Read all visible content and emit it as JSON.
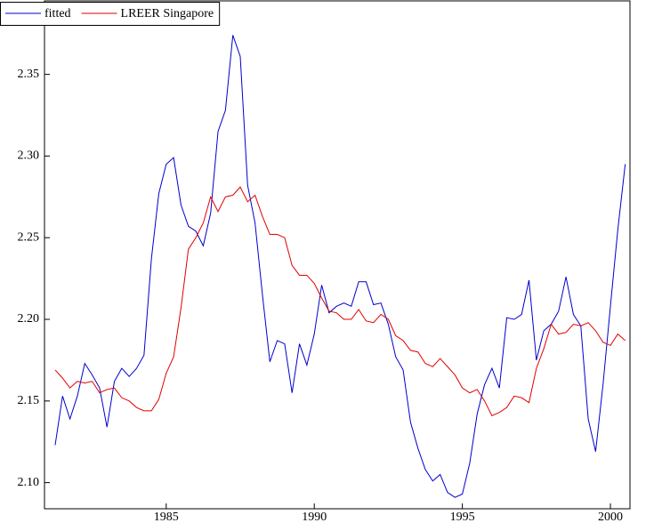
{
  "chart_data": {
    "type": "line",
    "x": [
      1981.25,
      1981.5,
      1981.75,
      1982,
      1982.25,
      1982.5,
      1982.75,
      1983,
      1983.25,
      1983.5,
      1983.75,
      1984,
      1984.25,
      1984.5,
      1984.75,
      1985,
      1985.25,
      1985.5,
      1985.75,
      1986,
      1986.25,
      1986.5,
      1986.75,
      1987,
      1987.25,
      1987.5,
      1987.75,
      1988,
      1988.25,
      1988.5,
      1988.75,
      1989,
      1989.25,
      1989.5,
      1989.75,
      1990,
      1990.25,
      1990.5,
      1990.75,
      1991,
      1991.25,
      1991.5,
      1991.75,
      1992,
      1992.25,
      1992.5,
      1992.75,
      1993,
      1993.25,
      1993.5,
      1993.75,
      1994,
      1994.25,
      1994.5,
      1994.75,
      1995,
      1995.25,
      1995.5,
      1995.75,
      1996,
      1996.25,
      1996.5,
      1996.75,
      1997,
      1997.25,
      1997.5,
      1997.75,
      1998,
      1998.25,
      1998.5,
      1998.75,
      1999,
      1999.25,
      1999.5,
      1999.75,
      2000,
      2000.25,
      2000.5
    ],
    "series": [
      {
        "name": "fitted",
        "color": "#0000cc",
        "values": [
          2.123,
          2.153,
          2.139,
          2.153,
          2.173,
          2.166,
          2.158,
          2.134,
          2.162,
          2.17,
          2.165,
          2.17,
          2.178,
          2.237,
          2.277,
          2.295,
          2.299,
          2.27,
          2.257,
          2.254,
          2.245,
          2.265,
          2.315,
          2.328,
          2.374,
          2.361,
          2.282,
          2.259,
          2.215,
          2.174,
          2.187,
          2.185,
          2.155,
          2.185,
          2.172,
          2.191,
          2.221,
          2.204,
          2.208,
          2.21,
          2.208,
          2.223,
          2.223,
          2.209,
          2.21,
          2.197,
          2.177,
          2.169,
          2.137,
          2.121,
          2.108,
          2.101,
          2.105,
          2.094,
          2.091,
          2.093,
          2.112,
          2.142,
          2.16,
          2.17,
          2.158,
          2.201,
          2.2,
          2.203,
          2.224,
          2.175,
          2.193,
          2.197,
          2.205,
          2.226,
          2.203,
          2.196,
          2.139,
          2.119,
          2.16,
          2.208,
          2.255,
          2.295
        ]
      },
      {
        "name": "LREER Singapore",
        "color": "#e00000",
        "values": [
          2.169,
          2.164,
          2.158,
          2.162,
          2.161,
          2.162,
          2.155,
          2.157,
          2.158,
          2.152,
          2.15,
          2.146,
          2.144,
          2.144,
          2.151,
          2.167,
          2.177,
          2.207,
          2.243,
          2.25,
          2.259,
          2.275,
          2.266,
          2.275,
          2.276,
          2.281,
          2.272,
          2.276,
          2.263,
          2.252,
          2.252,
          2.25,
          2.233,
          2.227,
          2.227,
          2.222,
          2.213,
          2.205,
          2.204,
          2.2,
          2.2,
          2.206,
          2.199,
          2.198,
          2.203,
          2.2,
          2.19,
          2.187,
          2.181,
          2.18,
          2.173,
          2.171,
          2.176,
          2.171,
          2.166,
          2.158,
          2.155,
          2.157,
          2.15,
          2.141,
          2.143,
          2.146,
          2.153,
          2.152,
          2.149,
          2.17,
          2.182,
          2.197,
          2.191,
          2.192,
          2.197,
          2.196,
          2.198,
          2.193,
          2.186,
          2.184,
          2.191,
          2.187
        ]
      }
    ],
    "xlim": [
      1980.89,
      2000.66
    ],
    "xticks": [
      1985,
      1990,
      1995,
      2000
    ],
    "ylim": [
      2.084,
      2.395
    ],
    "yticks": [
      {
        "value": 2.1,
        "label": "2.10"
      },
      2.15,
      {
        "value": 2.2,
        "label": "2.20"
      },
      2.25,
      {
        "value": 2.3,
        "label": "2.30"
      },
      2.35
    ],
    "legend": "top-left",
    "grid": false
  }
}
